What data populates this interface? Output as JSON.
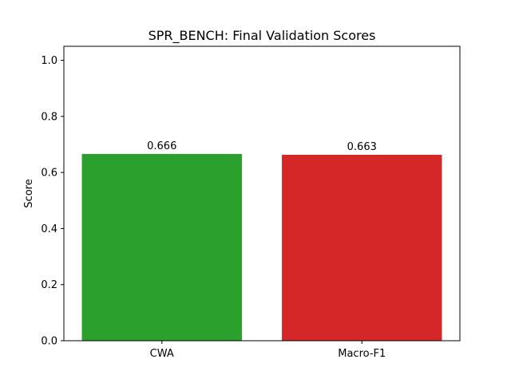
{
  "chart_data": {
    "type": "bar",
    "title": "SPR_BENCH: Final Validation Scores",
    "xlabel": "",
    "ylabel": "Score",
    "categories": [
      "CWA",
      "Macro-F1"
    ],
    "values": [
      0.666,
      0.663
    ],
    "value_labels": [
      "0.666",
      "0.663"
    ],
    "colors": [
      "#2ca02c",
      "#d62728"
    ],
    "ylim": [
      0,
      1.05
    ],
    "yticks": [
      0.0,
      0.2,
      0.4,
      0.6,
      0.8,
      1.0
    ],
    "ytick_labels": [
      "0.0",
      "0.2",
      "0.4",
      "0.6",
      "0.8",
      "1.0"
    ],
    "grid": false,
    "legend": "none"
  }
}
